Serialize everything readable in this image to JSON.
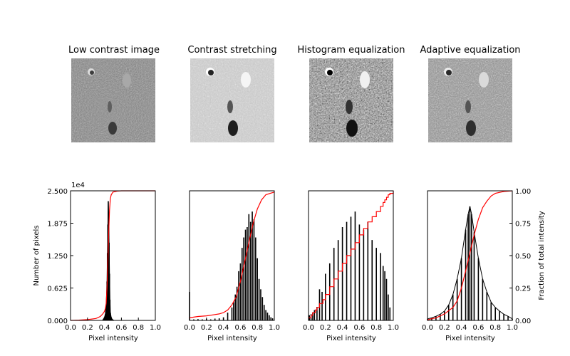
{
  "chart_data": [
    {
      "type": "bar",
      "panel": 1,
      "title": "Low contrast image",
      "xlabel": "Pixel intensity",
      "ylabel": "Number of pixels",
      "y_scale_label": "1e4",
      "xlim": [
        0,
        1
      ],
      "ylim": [
        0,
        25000
      ],
      "xticks": [
        "0.0",
        "0.2",
        "0.4",
        "0.6",
        "0.8",
        "1.0"
      ],
      "yticks": [
        "0.000",
        "0.625",
        "1.250",
        "1.875",
        "2.500"
      ],
      "histogram": {
        "x": [
          0.38,
          0.39,
          0.4,
          0.41,
          0.42,
          0.43,
          0.435,
          0.44,
          0.445,
          0.45,
          0.455,
          0.46,
          0.465,
          0.47,
          0.48,
          0.49,
          0.5,
          0.51
        ],
        "y": [
          100,
          300,
          600,
          1200,
          3000,
          7500,
          13000,
          18500,
          23000,
          20000,
          15000,
          9000,
          4000,
          1500,
          600,
          250,
          100,
          50
        ]
      },
      "cdf": {
        "x": [
          0,
          0.1,
          0.2,
          0.3,
          0.35,
          0.38,
          0.4,
          0.41,
          0.42,
          0.43,
          0.44,
          0.45,
          0.46,
          0.47,
          0.48,
          0.5,
          0.55,
          0.6,
          0.7,
          1.0
        ],
        "y": [
          0,
          0.002,
          0.006,
          0.015,
          0.03,
          0.05,
          0.07,
          0.09,
          0.13,
          0.25,
          0.45,
          0.68,
          0.85,
          0.94,
          0.97,
          0.99,
          0.998,
          1.0,
          1.0,
          1.0
        ]
      }
    },
    {
      "type": "bar",
      "panel": 2,
      "title": "Contrast stretching",
      "xlabel": "Pixel intensity",
      "xlim": [
        0,
        1
      ],
      "ylim": [
        0,
        25000
      ],
      "xticks": [
        "0.0",
        "0.2",
        "0.4",
        "0.6",
        "0.8",
        "1.0"
      ],
      "histogram": {
        "x": [
          0.0,
          0.05,
          0.1,
          0.15,
          0.2,
          0.25,
          0.3,
          0.35,
          0.4,
          0.45,
          0.5,
          0.52,
          0.54,
          0.56,
          0.58,
          0.6,
          0.62,
          0.64,
          0.66,
          0.68,
          0.7,
          0.72,
          0.74,
          0.76,
          0.78,
          0.8,
          0.82,
          0.84,
          0.86,
          0.88,
          0.9,
          0.92,
          0.94,
          0.96,
          0.98
        ],
        "y": [
          5500,
          200,
          250,
          200,
          300,
          200,
          350,
          400,
          600,
          1500,
          2500,
          3500,
          5000,
          6500,
          9500,
          11000,
          14000,
          16000,
          17500,
          18000,
          20500,
          19000,
          21000,
          19500,
          16000,
          12000,
          8000,
          6000,
          4500,
          3000,
          2000,
          1500,
          1000,
          600,
          400
        ]
      },
      "cdf": {
        "x": [
          0,
          0.05,
          0.1,
          0.2,
          0.3,
          0.35,
          0.4,
          0.45,
          0.5,
          0.55,
          0.6,
          0.65,
          0.7,
          0.75,
          0.8,
          0.85,
          0.9,
          0.95,
          1.0
        ],
        "y": [
          0.02,
          0.025,
          0.03,
          0.035,
          0.045,
          0.05,
          0.06,
          0.08,
          0.12,
          0.18,
          0.3,
          0.45,
          0.6,
          0.75,
          0.86,
          0.93,
          0.97,
          0.98,
          0.99
        ]
      }
    },
    {
      "type": "bar",
      "panel": 3,
      "title": "Histogram equalization",
      "xlabel": "Pixel intensity",
      "xlim": [
        0,
        1
      ],
      "ylim": [
        0,
        25000
      ],
      "xticks": [
        "0.0",
        "0.2",
        "0.4",
        "0.6",
        "0.8",
        "1.0"
      ],
      "histogram": {
        "x": [
          0.01,
          0.03,
          0.05,
          0.07,
          0.1,
          0.13,
          0.16,
          0.2,
          0.25,
          0.3,
          0.35,
          0.4,
          0.45,
          0.5,
          0.55,
          0.6,
          0.65,
          0.7,
          0.75,
          0.8,
          0.85,
          0.88,
          0.9,
          0.92,
          0.94,
          0.96
        ],
        "y": [
          1000,
          1200,
          1500,
          2000,
          2600,
          6000,
          5500,
          9000,
          11000,
          14000,
          15500,
          18000,
          19000,
          20000,
          21000,
          18500,
          17500,
          19000,
          15500,
          14000,
          13000,
          10500,
          9500,
          8000,
          5000,
          2500
        ]
      },
      "cdf": {
        "x": [
          0,
          0.03,
          0.05,
          0.08,
          0.1,
          0.13,
          0.17,
          0.2,
          0.25,
          0.3,
          0.35,
          0.4,
          0.45,
          0.5,
          0.55,
          0.6,
          0.65,
          0.7,
          0.75,
          0.8,
          0.85,
          0.88,
          0.9,
          0.92,
          0.94,
          0.96,
          1.0
        ],
        "y": [
          0.02,
          0.04,
          0.06,
          0.08,
          0.1,
          0.13,
          0.16,
          0.2,
          0.26,
          0.32,
          0.38,
          0.44,
          0.5,
          0.55,
          0.6,
          0.66,
          0.71,
          0.76,
          0.8,
          0.84,
          0.88,
          0.91,
          0.93,
          0.95,
          0.97,
          0.98,
          1.0
        ]
      }
    },
    {
      "type": "line",
      "panel": 4,
      "title": "Adaptive equalization",
      "xlabel": "Pixel intensity",
      "ylabel_right": "Fraction of total intensity",
      "xlim": [
        0,
        1
      ],
      "ylim": [
        0,
        25000
      ],
      "xticks": [
        "0.0",
        "0.2",
        "0.4",
        "0.6",
        "0.8",
        "1.0"
      ],
      "yticks_right": [
        "0.00",
        "0.25",
        "0.50",
        "0.75",
        "1.00"
      ],
      "histogram": {
        "x": [
          0.0,
          0.05,
          0.1,
          0.15,
          0.2,
          0.25,
          0.3,
          0.35,
          0.4,
          0.45,
          0.48,
          0.5,
          0.52,
          0.55,
          0.6,
          0.65,
          0.7,
          0.75,
          0.8,
          0.85,
          0.9,
          0.95,
          1.0
        ],
        "y": [
          300,
          500,
          800,
          1200,
          1800,
          3000,
          5000,
          8000,
          12000,
          17500,
          20500,
          22000,
          20500,
          17000,
          12000,
          8000,
          5500,
          3500,
          2500,
          1800,
          1200,
          800,
          300
        ]
      },
      "cdf": {
        "x": [
          0,
          0.1,
          0.2,
          0.3,
          0.35,
          0.4,
          0.45,
          0.5,
          0.55,
          0.6,
          0.65,
          0.7,
          0.75,
          0.8,
          0.9,
          1.0
        ],
        "y": [
          0.005,
          0.02,
          0.05,
          0.1,
          0.15,
          0.25,
          0.38,
          0.52,
          0.66,
          0.78,
          0.87,
          0.92,
          0.96,
          0.98,
          0.995,
          1.0
        ]
      }
    }
  ]
}
